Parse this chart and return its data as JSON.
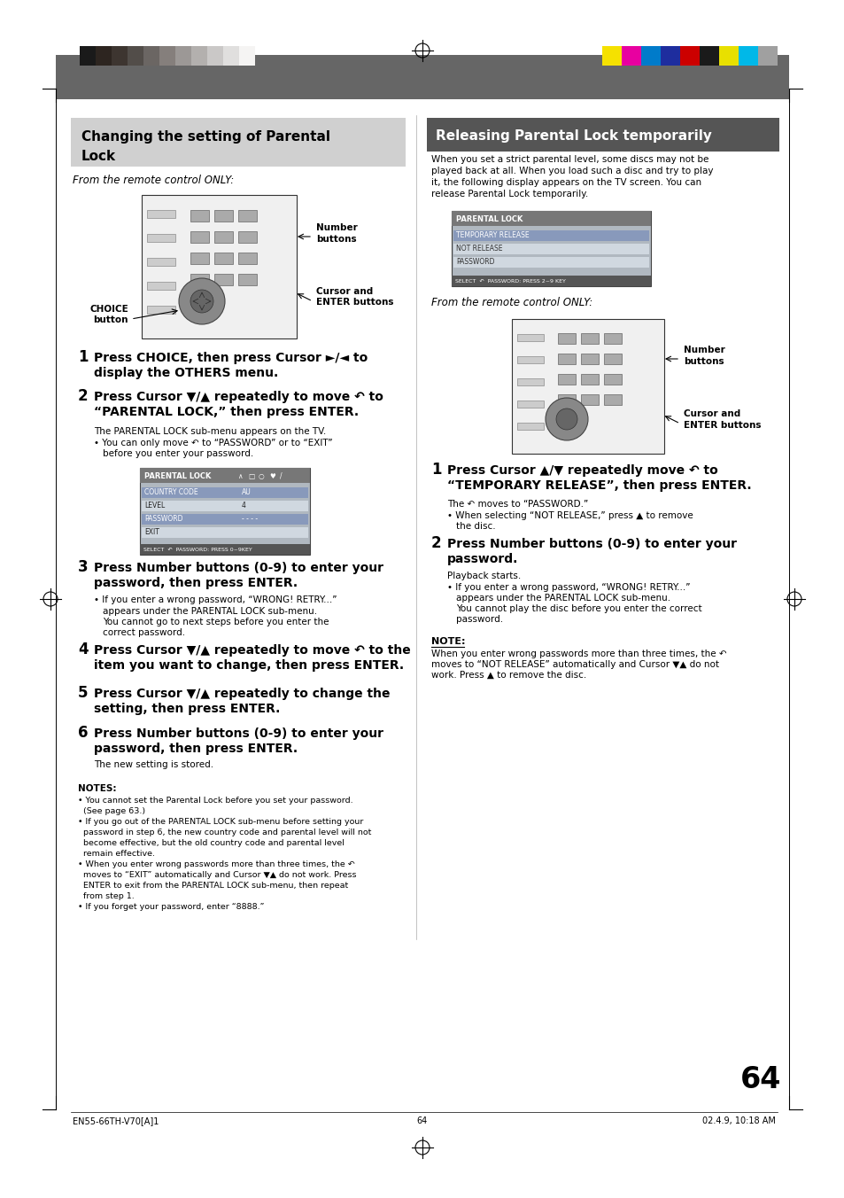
{
  "page_bg": "#ffffff",
  "header_bar_color": "#666666",
  "color_bar_left_colors": [
    "#1a1a1a",
    "#2d2520",
    "#3d3530",
    "#524d49",
    "#6b6663",
    "#857f7c",
    "#9c9896",
    "#b3b0ae",
    "#cac8c7",
    "#e0dfde",
    "#f5f4f3"
  ],
  "color_bar_right_colors": [
    "#f5e100",
    "#e800a0",
    "#007bca",
    "#1e2d9e",
    "#cc0000",
    "#1a1a1a",
    "#e8e000",
    "#00b8e8",
    "#a0a0a0"
  ],
  "left_section_title": "Changing the setting of Parental Lock",
  "left_section_title_bg": "#d0d0d0",
  "right_section_title": "Releasing Parental Lock temporarily",
  "right_section_title_bg": "#555555",
  "right_section_title_color": "#ffffff",
  "footer_left": "EN55-66TH-V70[A]1",
  "footer_center": "64",
  "footer_right": "02.4.9, 10:18 AM",
  "page_number": "64"
}
